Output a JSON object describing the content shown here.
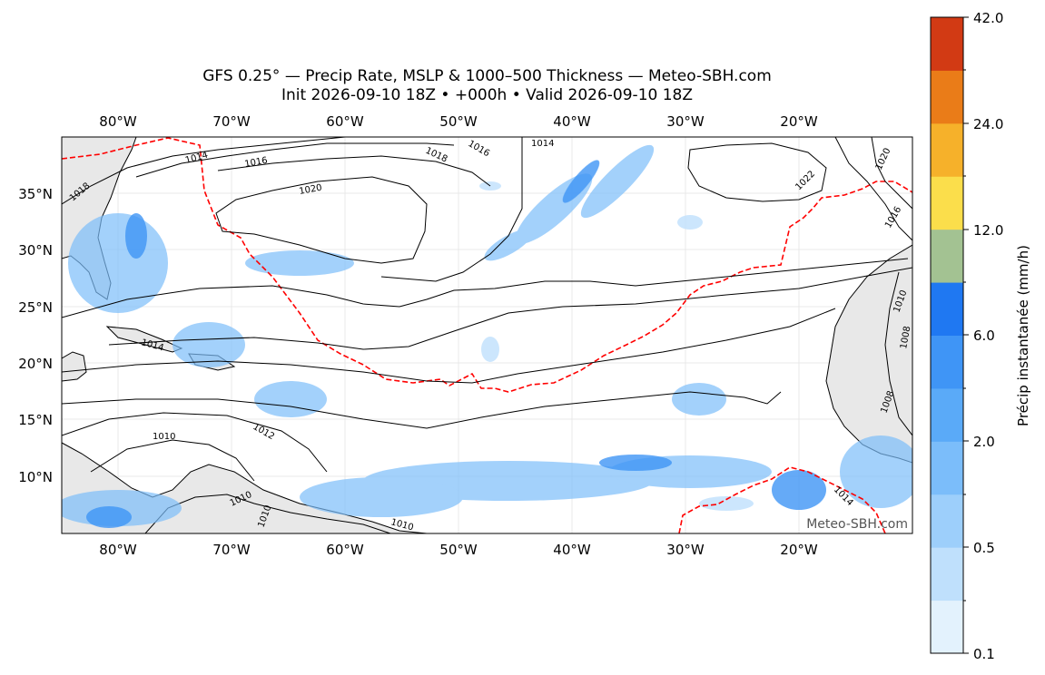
{
  "title": {
    "line1": "GFS 0.25° — Precip Rate, MSLP & 1000–500 Thickness — Meteo-SBH.com",
    "line2": "Init 2026-09-10 18Z • +000h • Valid 2026-09-10 18Z"
  },
  "map": {
    "lon_ticks": [
      "80°W",
      "70°W",
      "60°W",
      "50°W",
      "40°W",
      "30°W",
      "20°W"
    ],
    "lat_ticks": [
      "35°N",
      "30°N",
      "25°N",
      "20°N",
      "15°N",
      "10°N"
    ],
    "isobar_labels": [
      "1018",
      "1014",
      "1016",
      "1018",
      "1016",
      "1014",
      "1020",
      "1020",
      "1022",
      "1016",
      "1014",
      "1012",
      "1010",
      "1010",
      "1008",
      "1008",
      "1010",
      "1010",
      "1010",
      "1014"
    ],
    "watermark": "Meteo-SBH.com",
    "colors": {
      "land": "#e6e6e6",
      "thickness_line": "#ff0000",
      "isobar": "#000000"
    }
  },
  "colorbar": {
    "label": "Précip instantanée (mm/h)",
    "tick_labels": [
      "42.0",
      "24.0",
      "12.0",
      "6.0",
      "2.0",
      "0.5",
      "0.1"
    ],
    "colors_bottom_to_top": [
      "#e3f2fd",
      "#bfe0fc",
      "#9dcffb",
      "#7bbdfa",
      "#5aaaf8",
      "#3f95f6",
      "#1f78f2",
      "#a3c292",
      "#fbde4b",
      "#f6b12a",
      "#ea7c18",
      "#d23a14"
    ]
  }
}
